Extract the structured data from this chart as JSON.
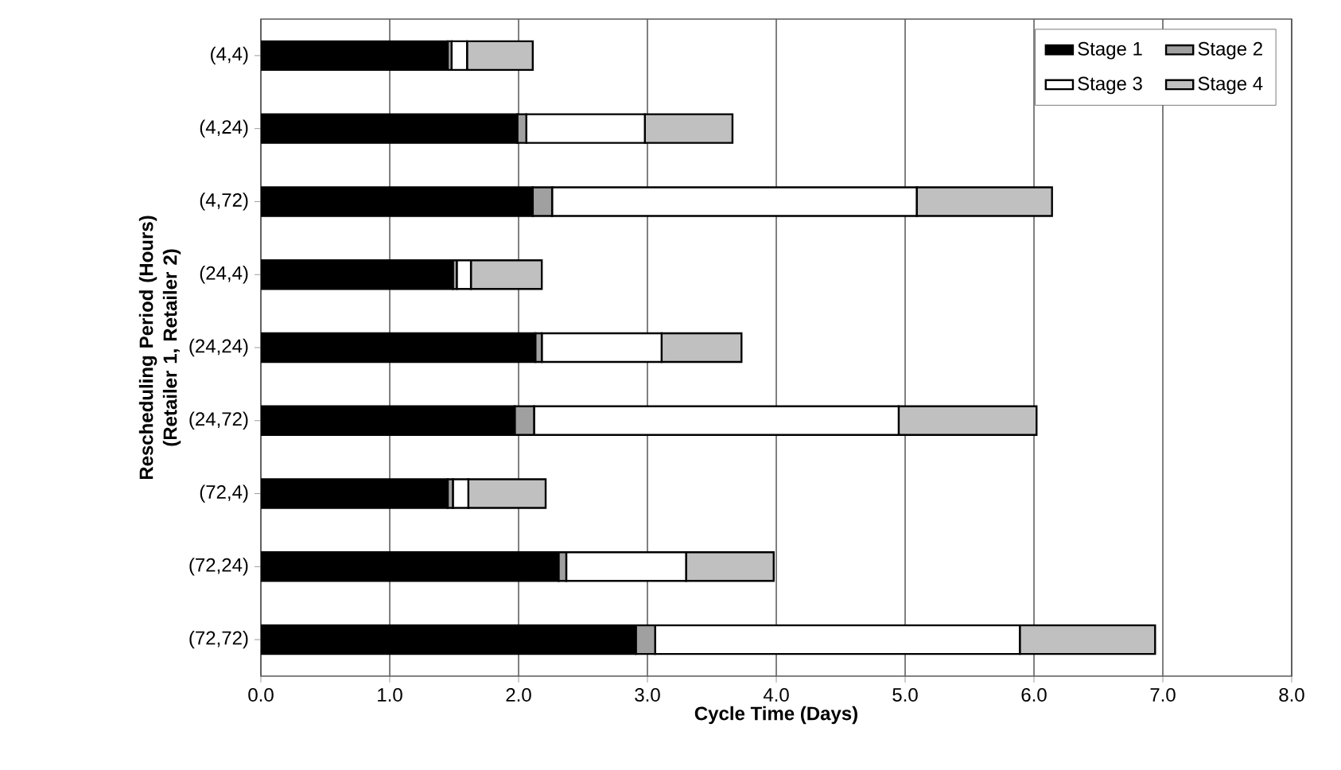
{
  "chart_data": {
    "type": "bar",
    "orientation": "horizontal",
    "stacked": true,
    "xlabel": "Cycle Time (Days)",
    "ylabel": "Rescheduling Period (Hours) (Retailer 1, Retailer 2)",
    "categories": [
      "(4,4)",
      "(4,24)",
      "(4,72)",
      "(24,4)",
      "(24,24)",
      "(24,72)",
      "(72,4)",
      "(72,24)",
      "(72,72)"
    ],
    "series": [
      {
        "name": "Stage 1",
        "color": "#000000",
        "values": [
          1.45,
          1.99,
          2.11,
          1.49,
          2.13,
          1.97,
          1.45,
          2.31,
          2.91
        ]
      },
      {
        "name": "Stage 2",
        "color": "#a0a0a0",
        "values": [
          0.03,
          0.07,
          0.15,
          0.03,
          0.05,
          0.15,
          0.04,
          0.06,
          0.15
        ]
      },
      {
        "name": "Stage 3",
        "color": "#ffffff",
        "values": [
          0.12,
          0.92,
          2.83,
          0.11,
          0.93,
          2.83,
          0.12,
          0.93,
          2.83
        ]
      },
      {
        "name": "Stage 4",
        "color": "#c0c0c0",
        "values": [
          0.51,
          0.68,
          1.05,
          0.55,
          0.62,
          1.07,
          0.6,
          0.68,
          1.05
        ]
      }
    ],
    "xlim": [
      0,
      8
    ],
    "xticks": [
      {
        "value": 0,
        "label": "0.0"
      },
      {
        "value": 1,
        "label": "1.0"
      },
      {
        "value": 2,
        "label": "2.0"
      },
      {
        "value": 3,
        "label": "3.0"
      },
      {
        "value": 4,
        "label": "4.0"
      },
      {
        "value": 5,
        "label": "5.0"
      },
      {
        "value": 6,
        "label": "6.0"
      },
      {
        "value": 7,
        "label": "7.0"
      },
      {
        "value": 8,
        "label": "8.0"
      }
    ],
    "grid": "x",
    "legend": "top right"
  }
}
